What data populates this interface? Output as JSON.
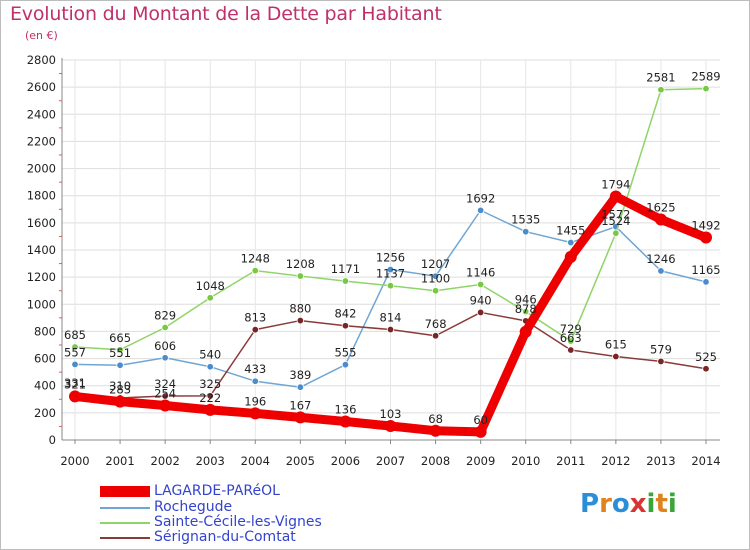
{
  "title": "Evolution du Montant de la Dette par Habitant",
  "subtitle": "(en €)",
  "logo": {
    "text": "Proxiti",
    "letters": [
      {
        "ch": "P",
        "color": "#2a8fd8"
      },
      {
        "ch": "r",
        "color": "#e0831f"
      },
      {
        "ch": "o",
        "color": "#2a8fd8"
      },
      {
        "ch": "x",
        "color": "#d83434"
      },
      {
        "ch": "i",
        "color": "#3aa63a"
      },
      {
        "ch": "t",
        "color": "#e0831f"
      },
      {
        "ch": "i",
        "color": "#3aa63a"
      }
    ]
  },
  "chart_data": {
    "type": "line",
    "title": "Evolution du Montant de la Dette par Habitant",
    "ylabel": "(en €)",
    "xlabel": "",
    "x": [
      2000,
      2001,
      2002,
      2003,
      2004,
      2005,
      2006,
      2007,
      2008,
      2009,
      2010,
      2011,
      2012,
      2013,
      2014
    ],
    "ylim": [
      0,
      2800
    ],
    "yticks": [
      0,
      200,
      400,
      600,
      800,
      1000,
      1200,
      1400,
      1600,
      1800,
      2000,
      2200,
      2400,
      2600,
      2800
    ],
    "grid": true,
    "legend_position": "bottom-left",
    "series": [
      {
        "name": "LAGARDE-PARéOL",
        "color": "#ee0000",
        "marker": "#ee0000",
        "thick": true,
        "values": [
          321,
          283,
          254,
          222,
          196,
          167,
          136,
          103,
          68,
          60,
          798,
          1349,
          1794,
          1625,
          1492
        ],
        "labels": [
          "321",
          "283",
          "254",
          "222",
          "196",
          "167",
          "136",
          "103",
          "68",
          "60",
          "",
          "",
          "1794",
          "1625",
          "1492"
        ]
      },
      {
        "name": "Rochegude",
        "color": "#6fa6d3",
        "marker": "#4a8ccc",
        "values": [
          557,
          551,
          606,
          540,
          433,
          389,
          555,
          1256,
          1207,
          1692,
          1535,
          1455,
          1572,
          1246,
          1165
        ],
        "labels": [
          "557",
          "551",
          "606",
          "540",
          "433",
          "389",
          "555",
          "1256",
          "1207",
          "1692",
          "1535",
          "1455",
          "1572",
          "1246",
          "1165"
        ]
      },
      {
        "name": "Sainte-Cécile-les-Vignes",
        "color": "#8fd468",
        "marker": "#76c943",
        "values": [
          685,
          665,
          829,
          1048,
          1248,
          1208,
          1171,
          1137,
          1100,
          1146,
          946,
          729,
          1524,
          2581,
          2589
        ],
        "labels": [
          "685",
          "665",
          "829",
          "1048",
          "1248",
          "1208",
          "1171",
          "1137",
          "1100",
          "1146",
          "946",
          "729",
          "1524",
          "2581",
          "2589"
        ]
      },
      {
        "name": "Sérignan-du-Comtat",
        "color": "#8a3a3a",
        "marker": "#7a2525",
        "values": [
          331,
          310,
          324,
          325,
          813,
          880,
          842,
          814,
          768,
          940,
          878,
          663,
          615,
          579,
          525
        ],
        "labels": [
          "331",
          "310",
          "324",
          "325",
          "813",
          "880",
          "842",
          "814",
          "768",
          "940",
          "878",
          "663",
          "615",
          "579",
          "525"
        ]
      }
    ]
  }
}
